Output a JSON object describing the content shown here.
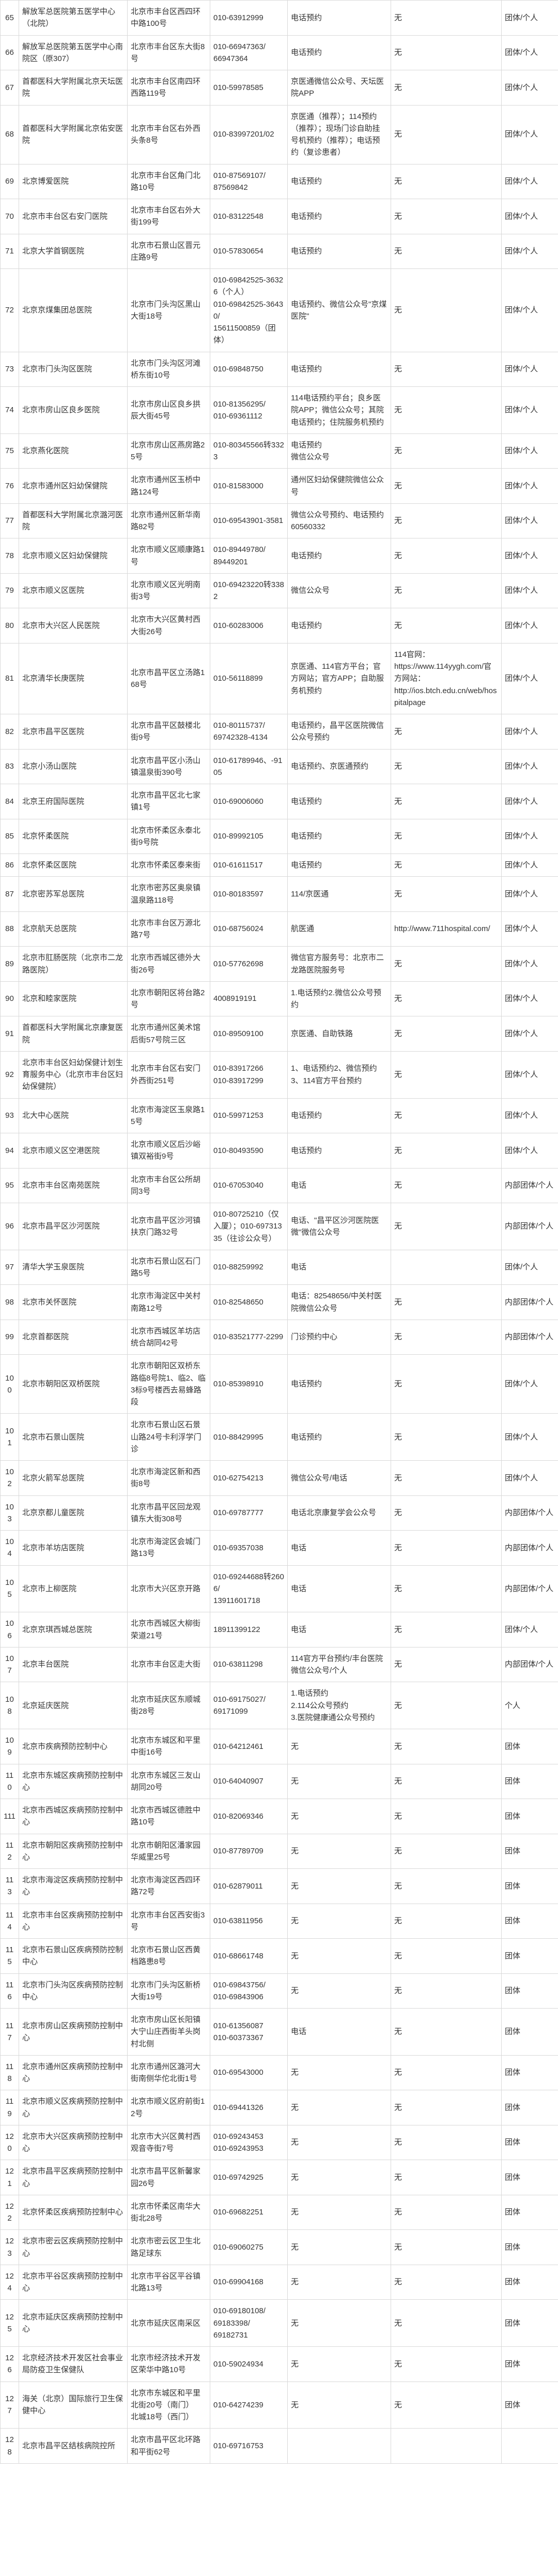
{
  "rows": [
    {
      "idx": "65",
      "name": "解放军总医院第五医学中心（北院）",
      "addr": "北京市丰台区西四环中路100号",
      "phone": "010-63912999",
      "channel": "电话预约",
      "web": "无",
      "group": "团体/个人"
    },
    {
      "idx": "66",
      "name": "解放军总医院第五医学中心南院区（原307）",
      "addr": "北京市丰台区东大街8号",
      "phone": "010-66947363/\n66947364",
      "channel": "电话预约",
      "web": "无",
      "group": "团体/个人"
    },
    {
      "idx": "67",
      "name": "首都医科大学附属北京天坛医院",
      "addr": "北京市丰台区南四环西路119号",
      "phone": "010-59978585",
      "channel": "京医通微信公众号、天坛医院APP",
      "web": "无",
      "group": "团体/个人"
    },
    {
      "idx": "68",
      "name": "首都医科大学附属北京佑安医院",
      "addr": "北京市丰台区右外西头条8号",
      "phone": "010-83997201/02",
      "channel": "京医通（推荐）；114预约（推荐）；现场门诊自助挂号机预约（推荐）；电话预约（复诊患者）",
      "web": "无",
      "group": "团体/个人"
    },
    {
      "idx": "69",
      "name": "北京博爱医院",
      "addr": "北京市丰台区角门北路10号",
      "phone": "010-87569107/\n87569842",
      "channel": "电话预约",
      "web": "无",
      "group": "团体/个人"
    },
    {
      "idx": "70",
      "name": "北京市丰台区右安门医院",
      "addr": "北京市丰台区右外大街199号",
      "phone": "010-83122548",
      "channel": "电话预约",
      "web": "无",
      "group": "团体/个人"
    },
    {
      "idx": "71",
      "name": "北京大学首钢医院",
      "addr": "北京市石景山区晋元庄路9号",
      "phone": "010-57830654",
      "channel": "电话预约",
      "web": "无",
      "group": "团体/个人"
    },
    {
      "idx": "72",
      "name": "北京京煤集团总医院",
      "addr": "北京市门头沟区黑山大街18号",
      "phone": "010-69842525-36326（个人）\n010-69842525-36430/\n15611500859（团体）",
      "channel": "电话预约、微信公众号\"京煤医院\"",
      "web": "无",
      "group": "团体/个人"
    },
    {
      "idx": "73",
      "name": "北京市门头沟区医院",
      "addr": "北京市门头沟区河滩桥东街10号",
      "phone": "010-69848750",
      "channel": "电话预约",
      "web": "无",
      "group": "团体/个人"
    },
    {
      "idx": "74",
      "name": "北京市房山区良乡医院",
      "addr": "北京市房山区良乡拱辰大街45号",
      "phone": "010-81356295/\n010-69361112",
      "channel": "114电话预约平台；良乡医院APP；微信公众号；其院电话预约；住院服务机预约",
      "web": "无",
      "group": "团体/个人"
    },
    {
      "idx": "75",
      "name": "北京燕化医院",
      "addr": "北京市房山区燕房路25号",
      "phone": "010-80345566转3323",
      "channel": "电话预约\n微信公众号",
      "web": "无",
      "group": "团体/个人"
    },
    {
      "idx": "76",
      "name": "北京市通州区妇幼保健院",
      "addr": "北京市通州区玉桥中路124号",
      "phone": "010-81583000",
      "channel": "通州区妇幼保健院微信公众号",
      "web": "无",
      "group": "团体/个人"
    },
    {
      "idx": "77",
      "name": "首都医科大学附属北京潞河医院",
      "addr": "北京市通州区新华南路82号",
      "phone": "010-69543901-3581",
      "channel": "微信公众号预约、电话预约60560332",
      "web": "无",
      "group": "团体/个人"
    },
    {
      "idx": "78",
      "name": "北京市顺义区妇幼保健院",
      "addr": "北京市顺义区顺康路1号",
      "phone": "010-89449780/\n89449201",
      "channel": "电话预约",
      "web": "无",
      "group": "团体/个人"
    },
    {
      "idx": "79",
      "name": "北京市顺义区医院",
      "addr": "北京市顺义区光明南街3号",
      "phone": "010-69423220转3382",
      "channel": "微信公众号",
      "web": "无",
      "group": "团体/个人"
    },
    {
      "idx": "80",
      "name": "北京市大兴区人民医院",
      "addr": "北京市大兴区黄村西大街26号",
      "phone": "010-60283006",
      "channel": "电话预约",
      "web": "无",
      "group": "团体/个人"
    },
    {
      "idx": "81",
      "name": "北京清华长庚医院",
      "addr": "北京市昌平区立汤路168号",
      "phone": "010-56118899",
      "channel": "京医通、114官方平台；官方网站；官方APP；自助服务机预约",
      "web": "114官网：\nhttps://www.114yygh.com/官方网站：\nhttp://ios.btch.edu.cn/web/hospitalpage",
      "group": "团体/个人"
    },
    {
      "idx": "82",
      "name": "北京市昌平区医院",
      "addr": "北京市昌平区鼓楼北街9号",
      "phone": "010-80115737/\n69742328-4134",
      "channel": "电话预约，昌平区医院微信公众号预约",
      "web": "无",
      "group": "团体/个人"
    },
    {
      "idx": "83",
      "name": "北京小汤山医院",
      "addr": "北京市昌平区小汤山镇温泉街390号",
      "phone": "010-61789946、-9105",
      "channel": "电话预约、京医通预约",
      "web": "无",
      "group": "团体/个人"
    },
    {
      "idx": "84",
      "name": "北京王府国际医院",
      "addr": "北京市昌平区北七家镇1号",
      "phone": "010-69006060",
      "channel": "电话预约",
      "web": "无",
      "group": "团体/个人"
    },
    {
      "idx": "85",
      "name": "北京怀柔医院",
      "addr": "北京市怀柔区永泰北街9号院",
      "phone": "010-89992105",
      "channel": "电话预约",
      "web": "无",
      "group": "团体/个人"
    },
    {
      "idx": "86",
      "name": "北京怀柔区医院",
      "addr": "北京市怀柔区泰来街",
      "phone": "010-61611517",
      "channel": "电话预约",
      "web": "无",
      "group": "团体/个人"
    },
    {
      "idx": "87",
      "name": "北京密苏军总医院",
      "addr": "北京市密苏区奥泉镇温泉路118号",
      "phone": "010-80183597",
      "channel": "114/京医通",
      "web": "无",
      "group": "团体/个人"
    },
    {
      "idx": "88",
      "name": "北京航天总医院",
      "addr": "北京市丰台区万源北路7号",
      "phone": "010-68756024",
      "channel": "航医通",
      "web": "http://www.711hospital.com/",
      "group": "团体/个人"
    },
    {
      "idx": "89",
      "name": "北京市肛肠医院（北京市二龙路医院）",
      "addr": "北京市西城区德外大街26号",
      "phone": "010-57762698",
      "channel": "微信官方服务号：北京市二龙路医院服务号",
      "web": "无",
      "group": "团体/个人"
    },
    {
      "idx": "90",
      "name": "北京和睦家医院",
      "addr": "北京市朝阳区将台路2号",
      "phone": "4008919191",
      "channel": "1.电话预约2.微信公众号预约",
      "web": "无",
      "group": "团体/个人"
    },
    {
      "idx": "91",
      "name": "首都医科大学附属北京康复医院",
      "addr": "北京市通州区美术馆后街57号院三区",
      "phone": "010-89509100",
      "channel": "京医通、自助铁路",
      "web": "无",
      "group": "团体/个人"
    },
    {
      "idx": "92",
      "name": "北京市丰台区妇幼保健计划生育服务中心（北京市丰台区妇幼保健院）",
      "addr": "北京市丰台区右安门外西街251号",
      "phone": "010-83917266\n010-83917299",
      "channel": "1、电话预约2、微信预约3、114官方平台预约",
      "web": "无",
      "group": "团体/个人"
    },
    {
      "idx": "93",
      "name": "北大中心医院",
      "addr": "北京市海淀区玉泉路15号",
      "phone": "010-59971253",
      "channel": "电话预约",
      "web": "无",
      "group": "团体/个人"
    },
    {
      "idx": "94",
      "name": "北京市顺义区空港医院",
      "addr": "北京市顺义区后沙峪镇双裕街9号",
      "phone": "010-80493590",
      "channel": "电话预约",
      "web": "无",
      "group": "团体/个人"
    },
    {
      "idx": "95",
      "name": "北京市丰台区南苑医院",
      "addr": "北京市丰台区公所胡同3号",
      "phone": "010-67053040",
      "channel": "电话",
      "web": "无",
      "group": "内部团体/个人"
    },
    {
      "idx": "96",
      "name": "北京市昌平区沙河医院",
      "addr": "北京市昌平区沙河镇扶京门路32号",
      "phone": "010-80725210（仅入厦）；010-69731335（往诊公众号）",
      "channel": "电话、\"昌平区沙河医院医微\"微信公众号",
      "web": "无",
      "group": "内部团体/个人"
    },
    {
      "idx": "97",
      "name": "清华大学玉泉医院",
      "addr": "北京市石景山区石门路5号",
      "phone": "010-88259992",
      "channel": "电话",
      "web": "",
      "group": "团体/个人"
    },
    {
      "idx": "98",
      "name": "北京市关怀医院",
      "addr": "北京市海淀区中关村南路12号",
      "phone": "010-82548650",
      "channel": "电话：82548656/中关村医院微信公众号",
      "web": "无",
      "group": "内部团体/个人"
    },
    {
      "idx": "99",
      "name": "北京首都医院",
      "addr": "北京市西城区羊坊店统合胡同42号",
      "phone": "010-83521777-2299",
      "channel": "门诊预约中心",
      "web": "无",
      "group": "内部团体/个人"
    },
    {
      "idx": "100",
      "name": "北京市朝阳区双桥医院",
      "addr": "北京市朝阳区双桥东路临8号院1、临2、临3标9号楼西去易蜂路段",
      "phone": "010-85398910",
      "channel": "电话预约",
      "web": "无",
      "group": "团体/个人"
    },
    {
      "idx": "101",
      "name": "北京市石景山医院",
      "addr": "北京市石景山区石景山路24号卡利浮学门诊",
      "phone": "010-88429995",
      "channel": "电话预约",
      "web": "无",
      "group": "团体/个人"
    },
    {
      "idx": "102",
      "name": "北京火箭军总医院",
      "addr": "北京市海淀区新和西街8号",
      "phone": "010-62754213",
      "channel": "微信公众号/电话",
      "web": "无",
      "group": "团体/个人"
    },
    {
      "idx": "103",
      "name": "北京京都儿童医院",
      "addr": "北京市昌平区回龙观镇东大街308号",
      "phone": "010-69787777",
      "channel": "电话北京康复学会公众号",
      "web": "无",
      "group": "内部团体/个人"
    },
    {
      "idx": "104",
      "name": "北京市羊坊店医院",
      "addr": "北京市海淀区会城门路13号",
      "phone": "010-69357038",
      "channel": "电话",
      "web": "无",
      "group": "内部团体/个人"
    },
    {
      "idx": "105",
      "name": "北京市上柳医院",
      "addr": "北京市大兴区京开路",
      "phone": "010-69244688转2606/\n13911601718",
      "channel": "电话",
      "web": "无",
      "group": "内部团体/个人"
    },
    {
      "idx": "106",
      "name": "北京京琪西城总医院",
      "addr": "北京市西城区大柳街荣道21号",
      "phone": "18911399122",
      "channel": "电话",
      "web": "无",
      "group": "团体/个人"
    },
    {
      "idx": "107",
      "name": "北京丰台医院",
      "addr": "北京市丰台区走大街",
      "phone": "010-63811298",
      "channel": "114官方平台预约/丰台医院微信公众号/个人",
      "web": "无",
      "group": "内部团体/个人"
    },
    {
      "idx": "108",
      "name": "北京延庆医院",
      "addr": "北京市延庆区东顺城街28号",
      "phone": "010-69175027/\n69171099",
      "channel": "1.电话预约\n2.114公众号预约\n3.医院健康通公众号预约",
      "web": "无",
      "group": "个人"
    },
    {
      "idx": "109",
      "name": "北京市疾病预防控制中心",
      "addr": "北京市东城区和平里中街16号",
      "phone": "010-64212461",
      "channel": "无",
      "web": "无",
      "group": "团体"
    },
    {
      "idx": "110",
      "name": "北京市东城区疾病预防控制中心",
      "addr": "北京市东城区三友山胡同20号",
      "phone": "010-64040907",
      "channel": "无",
      "web": "无",
      "group": "团体"
    },
    {
      "idx": "111",
      "name": "北京市西城区疾病预防控制中心",
      "addr": "北京市西城区德胜中路10号",
      "phone": "010-82069346",
      "channel": "无",
      "web": "无",
      "group": "团体"
    },
    {
      "idx": "112",
      "name": "北京市朝阳区疾病预防控制中心",
      "addr": "北京市朝阳区潘家园华威里25号",
      "phone": "010-87789709",
      "channel": "无",
      "web": "无",
      "group": "团体"
    },
    {
      "idx": "113",
      "name": "北京市海淀区疾病预防控制中心",
      "addr": "北京市海淀区西四环路72号",
      "phone": "010-62879011",
      "channel": "无",
      "web": "无",
      "group": "团体"
    },
    {
      "idx": "114",
      "name": "北京市丰台区疾病预防控制中心",
      "addr": "北京市丰台区西安街3号",
      "phone": "010-63811956",
      "channel": "无",
      "web": "无",
      "group": "团体"
    },
    {
      "idx": "115",
      "name": "北京市石景山区疾病预防控制中心",
      "addr": "北京市石景山区西黄档路患8号",
      "phone": "010-68661748",
      "channel": "无",
      "web": "无",
      "group": "团体"
    },
    {
      "idx": "116",
      "name": "北京市门头沟区疾病预防控制中心",
      "addr": "北京市门头沟区新桥大街19号",
      "phone": "010-69843756/\n010-69843906",
      "channel": "无",
      "web": "无",
      "group": "团体"
    },
    {
      "idx": "117",
      "name": "北京市房山区疾病预防控制中心",
      "addr": "北京市房山区长阳镇大宁山庄西街羊头岗村北侧",
      "phone": "010-61356087\n010-60373367",
      "channel": "电话",
      "web": "无",
      "group": "团体"
    },
    {
      "idx": "118",
      "name": "北京市通州区疾病预防控制中心",
      "addr": "北京市通州区潞河大街南侧华佗北街1号",
      "phone": "010-69543000",
      "channel": "无",
      "web": "无",
      "group": "团体"
    },
    {
      "idx": "119",
      "name": "北京市顺义区疾病预防控制中心",
      "addr": "北京市顺义区府前街12号",
      "phone": "010-69441326",
      "channel": "无",
      "web": "无",
      "group": "团体"
    },
    {
      "idx": "120",
      "name": "北京市大兴区疾病预防控制中心",
      "addr": "北京市大兴区黄村西观音寺街7号",
      "phone": "010-69243453\n010-69243953",
      "channel": "无",
      "web": "无",
      "group": "团体"
    },
    {
      "idx": "121",
      "name": "北京市昌平区疾病预防控制中心",
      "addr": "北京市昌平区新馨家园26号",
      "phone": "010-69742925",
      "channel": "无",
      "web": "无",
      "group": "团体"
    },
    {
      "idx": "122",
      "name": "北京怀柔区疾病预防控制中心",
      "addr": "北京市怀柔区南华大街北28号",
      "phone": "010-69682251",
      "channel": "无",
      "web": "无",
      "group": "团体"
    },
    {
      "idx": "123",
      "name": "北京市密云区疾病预防控制中心",
      "addr": "北京市密云区卫生北路足球东",
      "phone": "010-69060275",
      "channel": "无",
      "web": "无",
      "group": "团体"
    },
    {
      "idx": "124",
      "name": "北京市平谷区疾病预防控制中心",
      "addr": "北京市平谷区平谷镇北路13号",
      "phone": "010-69904168",
      "channel": "无",
      "web": "无",
      "group": "团体"
    },
    {
      "idx": "125",
      "name": "北京市延庆区疾病预防控制中心",
      "addr": "北京市延庆区南采区",
      "phone": "010-69180108/\n69183398/\n69182731",
      "channel": "无",
      "web": "无",
      "group": "团体"
    },
    {
      "idx": "126",
      "name": "北京经济技术开发区社会事业局防疫卫生保健队",
      "addr": "北京市经济技术开发区荣华中路10号",
      "phone": "010-59024934",
      "channel": "无",
      "web": "无",
      "group": "团体"
    },
    {
      "idx": "127",
      "name": "海关（北京）国际旅行卫生保健中心",
      "addr": "北京市东城区和平里北街20号（南门）\n北城18号（西门）",
      "phone": "010-64274239",
      "channel": "无",
      "web": "无",
      "group": "团体"
    },
    {
      "idx": "128",
      "name": "北京市昌平区结核病院控所",
      "addr": "北京市昌平区北环路和平街62号",
      "phone": "010-69716753",
      "channel": "",
      "web": "",
      "group": ""
    }
  ]
}
